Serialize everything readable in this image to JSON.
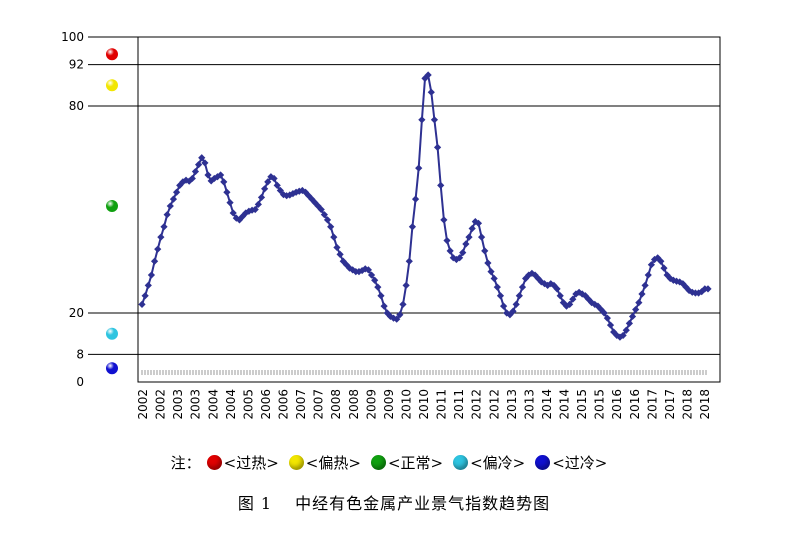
{
  "chart_data": {
    "type": "line",
    "title": "图 1　 中经有色金属产业景气指数趋势图",
    "ylim": [
      0,
      100
    ],
    "y_ticks": [
      0,
      8,
      20,
      80,
      92,
      100
    ],
    "grid_lines_at": [
      8,
      20,
      80,
      92,
      100
    ],
    "x_tick_labels": [
      "2002",
      "2002",
      "2003",
      "2003",
      "2004",
      "2004",
      "2005",
      "2006",
      "2006",
      "2007",
      "2007",
      "2008",
      "2008",
      "2009",
      "2009",
      "2010",
      "2010",
      "2011",
      "2011",
      "2012",
      "2012",
      "2013",
      "2013",
      "2014",
      "2014",
      "2015",
      "2015",
      "2016",
      "2016",
      "2017",
      "2017",
      "2018",
      "2018"
    ],
    "series": [
      {
        "color": "#2e3192",
        "marker": "diamond",
        "values": [
          22.5,
          25,
          28,
          31,
          35,
          38.5,
          42,
          45,
          48.5,
          51,
          53,
          55,
          57,
          58,
          58.5,
          58.2,
          59,
          61,
          63,
          65,
          63.5,
          60,
          58.3,
          59,
          59.5,
          60,
          58,
          55,
          52,
          49,
          47.5,
          47,
          48,
          49,
          49.5,
          49.8,
          50,
          51.5,
          53.5,
          56,
          58,
          59.5,
          59,
          57,
          55.5,
          54.3,
          54,
          54.2,
          54.6,
          55,
          55.3,
          55.5,
          55,
          54,
          53,
          52,
          51,
          50,
          48.5,
          47,
          45,
          42,
          39,
          37,
          35,
          34,
          33,
          32.5,
          32,
          32,
          32.3,
          32.8,
          32.5,
          31,
          29.5,
          27.5,
          25,
          22,
          20,
          19,
          18.5,
          18.2,
          19.5,
          22.5,
          28,
          35,
          45,
          53,
          62,
          76,
          88,
          89,
          84,
          76,
          68,
          57,
          47,
          41,
          38,
          36,
          35.5,
          36,
          37.5,
          40,
          42,
          44.5,
          46.5,
          46,
          42,
          38,
          34.5,
          32,
          30,
          27.5,
          25,
          22,
          20,
          19.5,
          20.5,
          22.5,
          25,
          27.5,
          30,
          31,
          31.5,
          31,
          30,
          29,
          28.5,
          28,
          28.5,
          28,
          27,
          25,
          23,
          22,
          22.5,
          24,
          25.5,
          26,
          25.5,
          25,
          24,
          23,
          22.5,
          22,
          21,
          20,
          18.5,
          16.5,
          14.5,
          13.5,
          13,
          13.5,
          15,
          17,
          19,
          21,
          23,
          25.5,
          28,
          31,
          34,
          35.5,
          36,
          35,
          33,
          31,
          30,
          29.5,
          29.2,
          29,
          28.5,
          27.5,
          26.5,
          26,
          25.8,
          25.8,
          26.2,
          27,
          27
        ]
      }
    ],
    "legend": {
      "note_label": "注：",
      "items": [
        {
          "label": "<过热>",
          "color": "#e00000",
          "y": 95
        },
        {
          "label": "<偏热>",
          "color": "#f2e600",
          "y": 86
        },
        {
          "label": "<正常>",
          "color": "#10a010",
          "y": 51
        },
        {
          "label": "<偏冷>",
          "color": "#2ec4e0",
          "y": 14
        },
        {
          "label": "<过冷>",
          "color": "#1010d0",
          "y": 4
        }
      ]
    }
  }
}
